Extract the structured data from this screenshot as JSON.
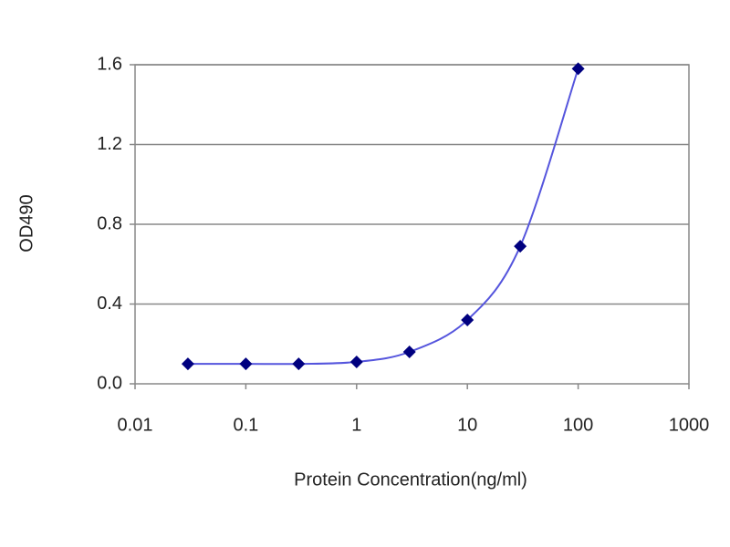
{
  "chart_data": {
    "type": "line",
    "xlabel": "Protein Concentration(ng/ml)",
    "ylabel": "OD490",
    "x": [
      0.03,
      0.1,
      0.3,
      1,
      3,
      10,
      30,
      100
    ],
    "values": [
      0.1,
      0.1,
      0.1,
      0.11,
      0.16,
      0.32,
      0.69,
      1.58
    ],
    "color": "#00007f",
    "line_color": "#5555dd",
    "xscale": "log",
    "xlim": [
      0.01,
      1000
    ],
    "xticks": [
      0.01,
      0.1,
      1,
      10,
      100,
      1000
    ],
    "ylim": [
      0,
      1.6
    ],
    "yticks": [
      {
        "value": 0,
        "label": "0.0"
      },
      0.4,
      0.8,
      1.2,
      1.6
    ],
    "grid": true
  }
}
